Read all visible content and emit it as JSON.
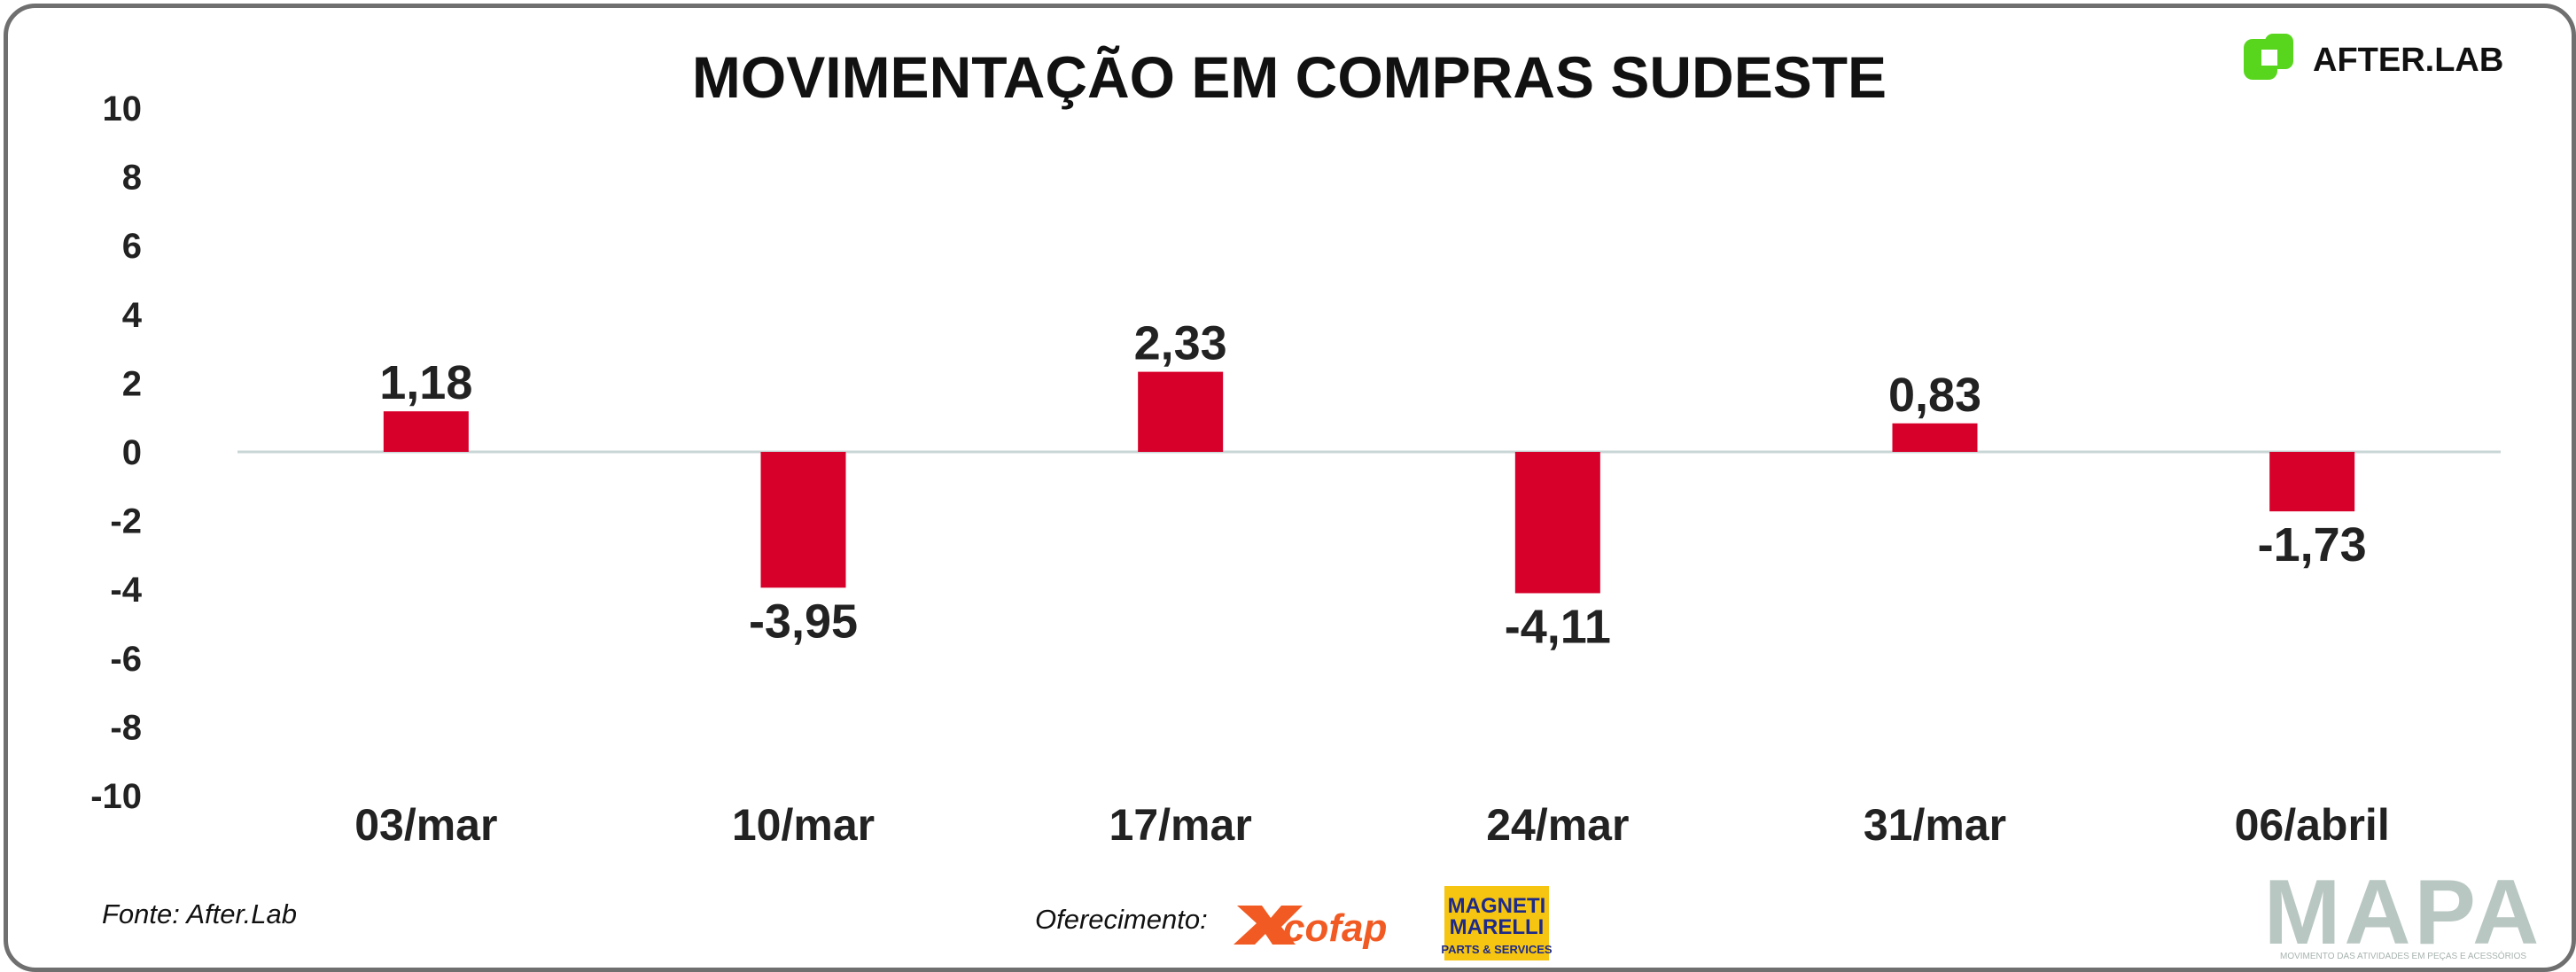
{
  "colors": {
    "bar": "#d7002a",
    "zero_line": "#c9d6d6",
    "frame": "#6f6f6f",
    "afterlab_green": "#58d61d",
    "cofap_orange": "#f15a22",
    "magneti_yellow": "#f6c511",
    "mapa_gray": "#b9c7c2"
  },
  "brand": {
    "afterlab_logo": "AFTER.LAB",
    "mapa_logo": "MAPA",
    "mapa_tagline": "MOVIMENTO DAS ATIVIDADES EM PEÇAS E ACESSÓRIOS"
  },
  "footer": {
    "source": "Fonte: After.Lab",
    "sponsor_label": "Oferecimento:",
    "sponsor_1": "cofap",
    "sponsor_2_line1": "MAGNETI",
    "sponsor_2_line2": "MARELLI",
    "sponsor_2_line3": "PARTS & SERVICES"
  },
  "chart_data": {
    "type": "bar",
    "title": "MOVIMENTAÇÃO EM COMPRAS SUDESTE",
    "xlabel": "",
    "ylabel": "",
    "categories": [
      "03/mar",
      "10/mar",
      "17/mar",
      "24/mar",
      "31/mar",
      "06/abril"
    ],
    "values": [
      1.18,
      -3.95,
      2.33,
      -4.11,
      0.83,
      -1.73
    ],
    "data_labels": [
      "1,18",
      "-3,95",
      "2,33",
      "-4,11",
      "0,83",
      "-1,73"
    ],
    "ylim": [
      -10,
      10
    ],
    "yticks": [
      10,
      8,
      6,
      4,
      2,
      0,
      -2,
      -4,
      -6,
      -8,
      -10
    ],
    "grid": false,
    "legend": "none"
  }
}
